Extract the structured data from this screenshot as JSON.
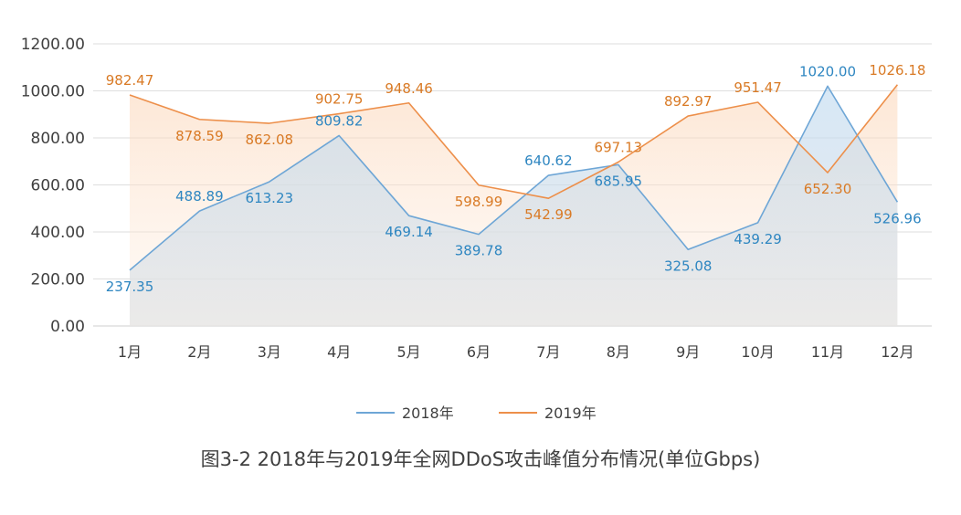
{
  "chart_data": {
    "type": "line",
    "title": "图3-2  2018年与2019年全网DDoS攻击峰值分布情况(单位Gbps)",
    "xlabel": "",
    "ylabel": "",
    "categories": [
      "1月",
      "2月",
      "3月",
      "4月",
      "5月",
      "6月",
      "7月",
      "8月",
      "9月",
      "10月",
      "11月",
      "12月"
    ],
    "y_ticks": [
      "0.00",
      "200.00",
      "400.00",
      "600.00",
      "800.00",
      "1000.00",
      "1200.00"
    ],
    "ylim": [
      0,
      1200
    ],
    "grid": true,
    "legend_position": "bottom",
    "series": [
      {
        "name": "2018年",
        "color": "#6ea6d6",
        "label_color": "#2e86c1",
        "values": [
          237.35,
          488.89,
          613.23,
          809.82,
          469.14,
          389.78,
          640.62,
          685.95,
          325.08,
          439.29,
          1020.0,
          526.96
        ],
        "labels": [
          "237.35",
          "488.89",
          "613.23",
          "809.82",
          "469.14",
          "389.78",
          "640.62",
          "685.95",
          "325.08",
          "439.29",
          "1020.00",
          "526.96"
        ]
      },
      {
        "name": "2019年",
        "color": "#ed8f4a",
        "label_color": "#d97a25",
        "values": [
          982.47,
          878.59,
          862.08,
          902.75,
          948.46,
          598.99,
          542.99,
          697.13,
          892.97,
          951.47,
          652.3,
          1026.18
        ],
        "labels": [
          "982.47",
          "878.59",
          "862.08",
          "902.75",
          "948.46",
          "598.99",
          "542.99",
          "697.13",
          "892.97",
          "951.47",
          "652.30",
          "1026.18"
        ]
      }
    ]
  }
}
